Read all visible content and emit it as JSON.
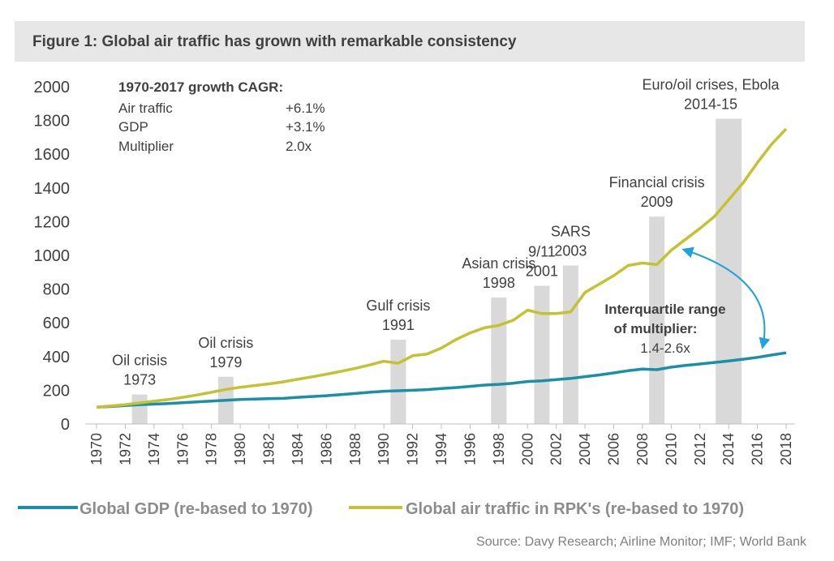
{
  "title": "Figure 1: Global air traffic has grown with remarkable consistency",
  "source": "Source: Davy Research; Airline Monitor; IMF; World Bank",
  "colors": {
    "gdp": "#1a8fa8",
    "air": "#c5c232",
    "bars": "#d9d9d9",
    "arrow": "#1ea2dc",
    "text": "#404040",
    "legend_text": "#8c8c8c"
  },
  "cagr_box": {
    "heading": "1970-2017 growth CAGR:",
    "rows": [
      {
        "label": "Air traffic",
        "value": "+6.1%"
      },
      {
        "label": "GDP",
        "value": "+3.1%"
      },
      {
        "label": "Multiplier",
        "value": "2.0x"
      }
    ]
  },
  "annotation_multiplier": {
    "line1": "Interquartile range",
    "line2": "of multiplier:",
    "line3": "1.4-2.6x"
  },
  "chart_data": {
    "type": "line",
    "ylim": [
      0,
      2000
    ],
    "yticks": [
      "0",
      "200",
      "400",
      "600",
      "800",
      "1000",
      "1200",
      "1400",
      "1600",
      "1800",
      "2000"
    ],
    "xlim": [
      1970,
      2018
    ],
    "xticks": [
      "1970",
      "1972",
      "1974",
      "1976",
      "1978",
      "1980",
      "1982",
      "1984",
      "1986",
      "1988",
      "1990",
      "1992",
      "1994",
      "1996",
      "1998",
      "2000",
      "2002",
      "2004",
      "2006",
      "2008",
      "2010",
      "2012",
      "2014",
      "2016",
      "2018"
    ],
    "series": [
      {
        "name": "Global GDP (re-based to 1970)",
        "x": [
          1970,
          1971,
          1972,
          1973,
          1974,
          1975,
          1976,
          1977,
          1978,
          1979,
          1980,
          1981,
          1982,
          1983,
          1984,
          1985,
          1986,
          1987,
          1988,
          1989,
          1990,
          1991,
          1992,
          1993,
          1994,
          1995,
          1996,
          1997,
          1998,
          1999,
          2000,
          2001,
          2002,
          2003,
          2004,
          2005,
          2006,
          2007,
          2008,
          2009,
          2010,
          2011,
          2012,
          2013,
          2014,
          2015,
          2016,
          2017,
          2018
        ],
        "values": [
          100,
          104,
          109,
          115,
          118,
          121,
          126,
          131,
          136,
          141,
          145,
          148,
          150,
          152,
          158,
          163,
          168,
          174,
          181,
          188,
          194,
          197,
          200,
          204,
          210,
          216,
          223,
          231,
          235,
          242,
          252,
          256,
          263,
          270,
          281,
          291,
          303,
          316,
          326,
          322,
          337,
          347,
          356,
          365,
          374,
          384,
          395,
          409,
          422
        ]
      },
      {
        "name": "Global air traffic in RPK's (re-based to 1970)",
        "x": [
          1970,
          1971,
          1972,
          1973,
          1974,
          1975,
          1976,
          1977,
          1978,
          1979,
          1980,
          1981,
          1982,
          1983,
          1984,
          1985,
          1986,
          1987,
          1988,
          1989,
          1990,
          1991,
          1992,
          1993,
          1994,
          1995,
          1996,
          1997,
          1998,
          1999,
          2000,
          2001,
          2002,
          2003,
          2004,
          2005,
          2006,
          2007,
          2008,
          2009,
          2010,
          2011,
          2012,
          2013,
          2014,
          2015,
          2016,
          2017,
          2018
        ],
        "values": [
          100,
          107,
          115,
          125,
          135,
          145,
          158,
          172,
          188,
          205,
          218,
          228,
          238,
          250,
          265,
          280,
          295,
          312,
          330,
          350,
          372,
          360,
          405,
          415,
          450,
          500,
          540,
          570,
          585,
          615,
          675,
          655,
          655,
          665,
          780,
          830,
          880,
          940,
          955,
          945,
          1030,
          1095,
          1160,
          1230,
          1330,
          1430,
          1550,
          1660,
          1750
        ]
      }
    ],
    "bars": [
      {
        "x": 1973,
        "value": 175
      },
      {
        "x": 1979,
        "value": 280
      },
      {
        "x": 1991,
        "value": 500
      },
      {
        "x": 1998,
        "value": 750
      },
      {
        "x": 2001,
        "value": 820
      },
      {
        "x": 2003,
        "value": 940
      },
      {
        "x": 2009,
        "value": 1230
      },
      {
        "x": 2014,
        "value": 1810
      }
    ],
    "bar_labels": [
      {
        "x": 1973,
        "line1": "Oil crisis",
        "line2": "1973"
      },
      {
        "x": 1979,
        "line1": "Oil crisis",
        "line2": "1979"
      },
      {
        "x": 1991,
        "line1": "Gulf crisis",
        "line2": "1991"
      },
      {
        "x": 1998,
        "line1": "Asian crisis",
        "line2": "1998"
      },
      {
        "x": 2001,
        "line1": "9/11",
        "line2": "2001"
      },
      {
        "x": 2003,
        "line1": "SARS",
        "line2": "2003"
      },
      {
        "x": 2009,
        "line1": "Financial crisis",
        "line2": "2009"
      },
      {
        "x": 2014,
        "line1": "Euro/oil crises, Ebola",
        "line2": "2014-15"
      }
    ],
    "legend": {
      "placement": "bottom"
    }
  }
}
